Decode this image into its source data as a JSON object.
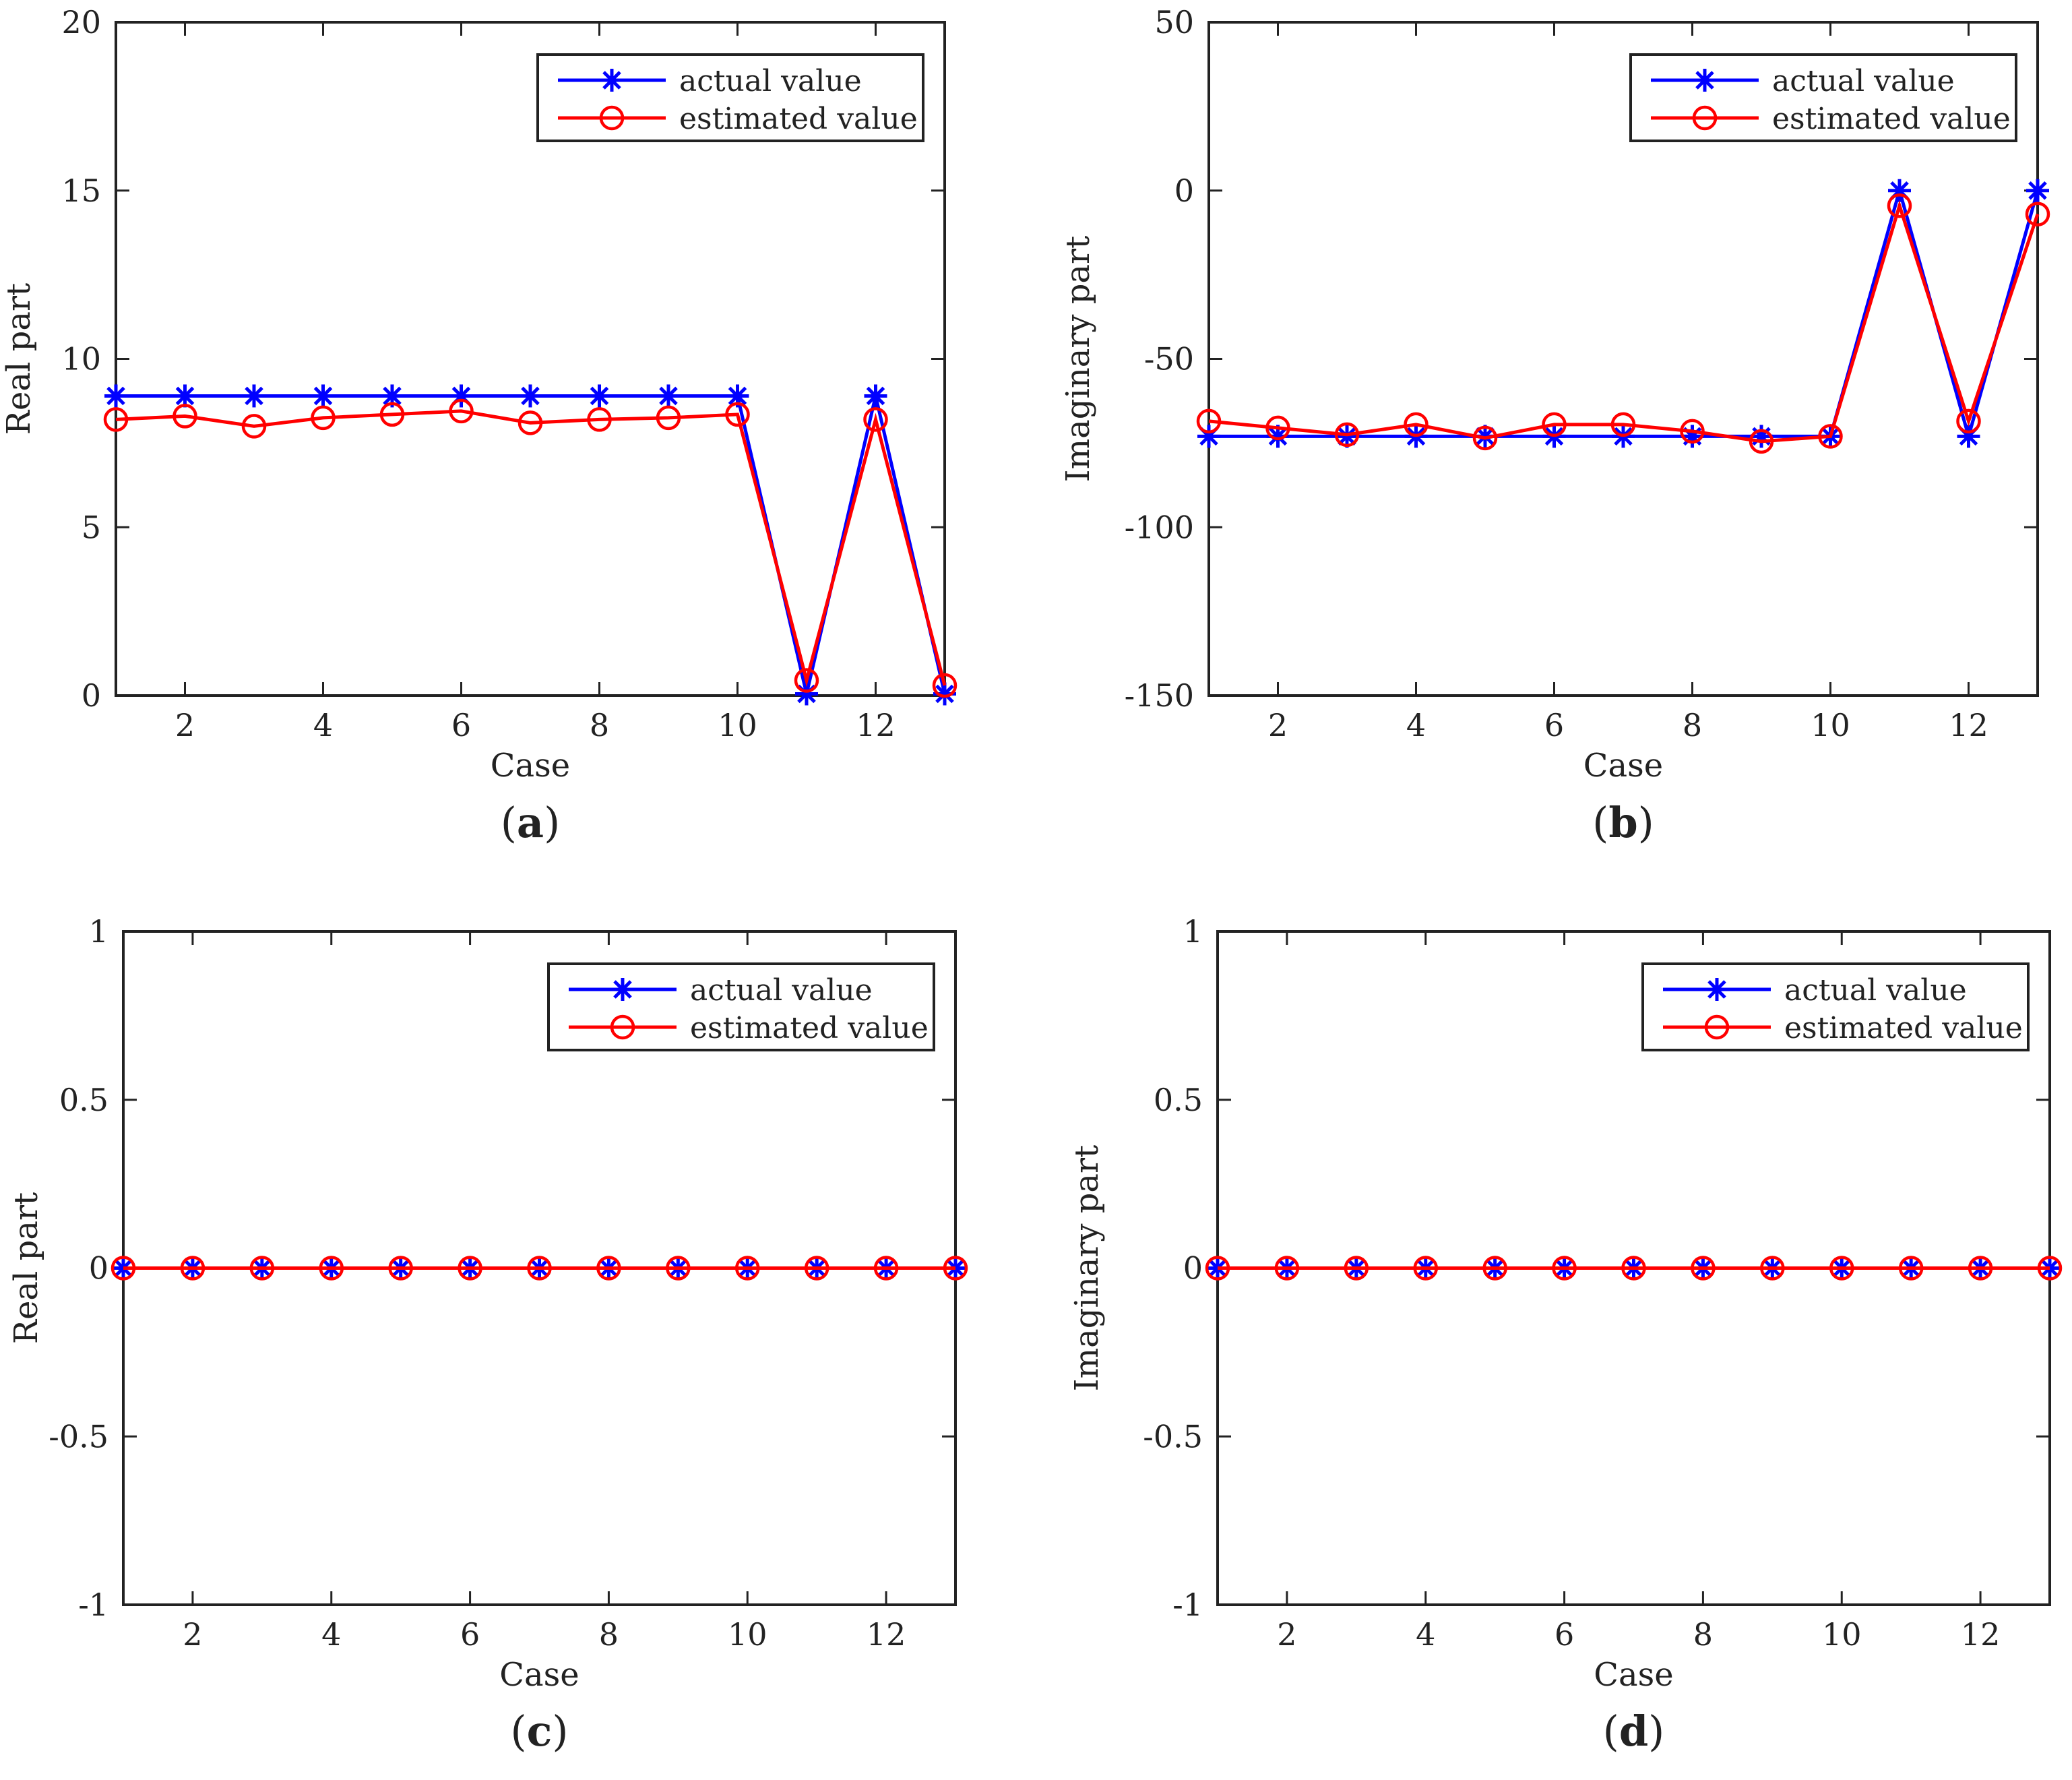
{
  "colors": {
    "actual": "#0000ff",
    "estimated": "#ff0000",
    "axis": "#222222",
    "background": "#ffffff"
  },
  "legend": {
    "actual_label": "actual value",
    "estimated_label": "estimated value",
    "position": "top-right"
  },
  "chart_data": [
    {
      "type": "line",
      "panel_label": "a",
      "xlabel": "Case",
      "ylabel": "Real part",
      "xlim": [
        1,
        13
      ],
      "ylim": [
        0,
        20
      ],
      "xticks": [
        "2",
        "4",
        "6",
        "8",
        "10",
        "12"
      ],
      "yticks": [
        "0",
        "5",
        "10",
        "15",
        "20"
      ],
      "grid": false,
      "x": [
        1,
        2,
        3,
        4,
        5,
        6,
        7,
        8,
        9,
        10,
        11,
        12,
        13
      ],
      "series": [
        {
          "name": "actual value",
          "marker": "asterisk",
          "values": [
            8.9,
            8.9,
            8.9,
            8.9,
            8.9,
            8.9,
            8.9,
            8.9,
            8.9,
            8.9,
            0.05,
            8.9,
            0.05
          ]
        },
        {
          "name": "estimated value",
          "marker": "circle",
          "values": [
            8.2,
            8.3,
            8.0,
            8.25,
            8.35,
            8.45,
            8.1,
            8.2,
            8.25,
            8.35,
            0.45,
            8.2,
            0.3
          ]
        }
      ]
    },
    {
      "type": "line",
      "panel_label": "b",
      "xlabel": "Case",
      "ylabel": "Imaginary part",
      "xlim": [
        1,
        13
      ],
      "ylim": [
        -150,
        50
      ],
      "xticks": [
        "2",
        "4",
        "6",
        "8",
        "10",
        "12"
      ],
      "yticks": [
        "-150",
        "-100",
        "-50",
        "0",
        "50"
      ],
      "grid": false,
      "x": [
        1,
        2,
        3,
        4,
        5,
        6,
        7,
        8,
        9,
        10,
        11,
        12,
        13
      ],
      "series": [
        {
          "name": "actual value",
          "marker": "asterisk",
          "values": [
            -73,
            -73,
            -73,
            -73,
            -73,
            -73,
            -73,
            -73,
            -73,
            -73,
            0,
            -73,
            0
          ]
        },
        {
          "name": "estimated value",
          "marker": "circle",
          "values": [
            -68.5,
            -70.5,
            -72.5,
            -69.5,
            -73.5,
            -69.5,
            -69.5,
            -71.5,
            -74.5,
            -73,
            -4.5,
            -68.5,
            -7
          ]
        }
      ]
    },
    {
      "type": "line",
      "panel_label": "c",
      "xlabel": "Case",
      "ylabel": "Real part",
      "xlim": [
        1,
        13
      ],
      "ylim": [
        -1,
        1
      ],
      "xticks": [
        "2",
        "4",
        "6",
        "8",
        "10",
        "12"
      ],
      "yticks": [
        "-1",
        "-0.5",
        "0",
        "0.5",
        "1"
      ],
      "grid": false,
      "x": [
        1,
        2,
        3,
        4,
        5,
        6,
        7,
        8,
        9,
        10,
        11,
        12,
        13
      ],
      "series": [
        {
          "name": "actual value",
          "marker": "asterisk",
          "values": [
            0,
            0,
            0,
            0,
            0,
            0,
            0,
            0,
            0,
            0,
            0,
            0,
            0
          ]
        },
        {
          "name": "estimated value",
          "marker": "circle",
          "values": [
            0,
            0,
            0,
            0,
            0,
            0,
            0,
            0,
            0,
            0,
            0,
            0,
            0
          ]
        }
      ]
    },
    {
      "type": "line",
      "panel_label": "d",
      "xlabel": "Case",
      "ylabel": "Imaginary part",
      "xlim": [
        1,
        13
      ],
      "ylim": [
        -1,
        1
      ],
      "xticks": [
        "2",
        "4",
        "6",
        "8",
        "10",
        "12"
      ],
      "yticks": [
        "-1",
        "-0.5",
        "0",
        "0.5",
        "1"
      ],
      "grid": false,
      "x": [
        1,
        2,
        3,
        4,
        5,
        6,
        7,
        8,
        9,
        10,
        11,
        12,
        13
      ],
      "series": [
        {
          "name": "actual value",
          "marker": "asterisk",
          "values": [
            0,
            0,
            0,
            0,
            0,
            0,
            0,
            0,
            0,
            0,
            0,
            0,
            0
          ]
        },
        {
          "name": "estimated value",
          "marker": "circle",
          "values": [
            0,
            0,
            0,
            0,
            0,
            0,
            0,
            0,
            0,
            0,
            0,
            0,
            0
          ]
        }
      ]
    }
  ]
}
